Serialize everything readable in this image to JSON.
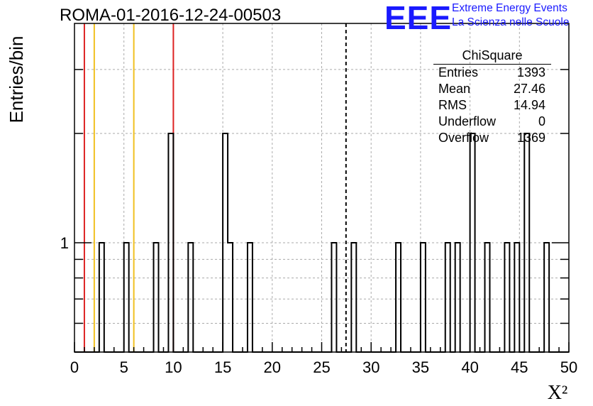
{
  "header": {
    "run_title": "ROMA-01-2016-12-24-00503",
    "logo_text": "EEE",
    "logo_line1": "Extreme Energy Events",
    "logo_line2": "La Scienza nelle Scuole"
  },
  "stats_box": {
    "title": "ChiSquare",
    "rows": [
      {
        "label": "Entries",
        "value": "1393"
      },
      {
        "label": "Mean",
        "value": "27.46"
      },
      {
        "label": "RMS",
        "value": "14.94"
      },
      {
        "label": "Underflow",
        "value": "0"
      },
      {
        "label": "Overflow",
        "value": "1369"
      }
    ]
  },
  "colors": {
    "axis": "#000000",
    "grid": "#aaaaaa",
    "histogram": "#000000",
    "red_marker": "#dd2222",
    "yellow_marker": "#f0c020",
    "logo_blue": "#1a1aff"
  },
  "chart_data": {
    "type": "histogram",
    "title": "ROMA-01-2016-12-24-00503",
    "xlabel": "X²",
    "ylabel": "Entries/bin",
    "xlim": [
      0,
      50
    ],
    "ylog": true,
    "bin_width": 0.5,
    "x_ticks": [
      "0",
      "5",
      "10",
      "15",
      "20",
      "25",
      "30",
      "35",
      "40",
      "45",
      "50"
    ],
    "y_tick_labels": [
      {
        "value": 1,
        "label": "1"
      }
    ],
    "grid": true,
    "bins": [
      {
        "x0": 2.5,
        "count": 1
      },
      {
        "x0": 5.0,
        "count": 1
      },
      {
        "x0": 8.0,
        "count": 1
      },
      {
        "x0": 9.5,
        "count": 2
      },
      {
        "x0": 11.5,
        "count": 1
      },
      {
        "x0": 15.0,
        "count": 2
      },
      {
        "x0": 15.5,
        "count": 1
      },
      {
        "x0": 17.5,
        "count": 1
      },
      {
        "x0": 26.0,
        "count": 1
      },
      {
        "x0": 28.0,
        "count": 1
      },
      {
        "x0": 32.5,
        "count": 1
      },
      {
        "x0": 35.0,
        "count": 1
      },
      {
        "x0": 37.5,
        "count": 1
      },
      {
        "x0": 38.5,
        "count": 1
      },
      {
        "x0": 40.0,
        "count": 2
      },
      {
        "x0": 41.5,
        "count": 1
      },
      {
        "x0": 43.5,
        "count": 1
      },
      {
        "x0": 44.5,
        "count": 1
      },
      {
        "x0": 45.5,
        "count": 2
      },
      {
        "x0": 47.5,
        "count": 1
      }
    ],
    "mean_marker": 27.46,
    "red_markers": [
      1,
      10
    ],
    "yellow_markers": [
      2,
      6
    ]
  }
}
